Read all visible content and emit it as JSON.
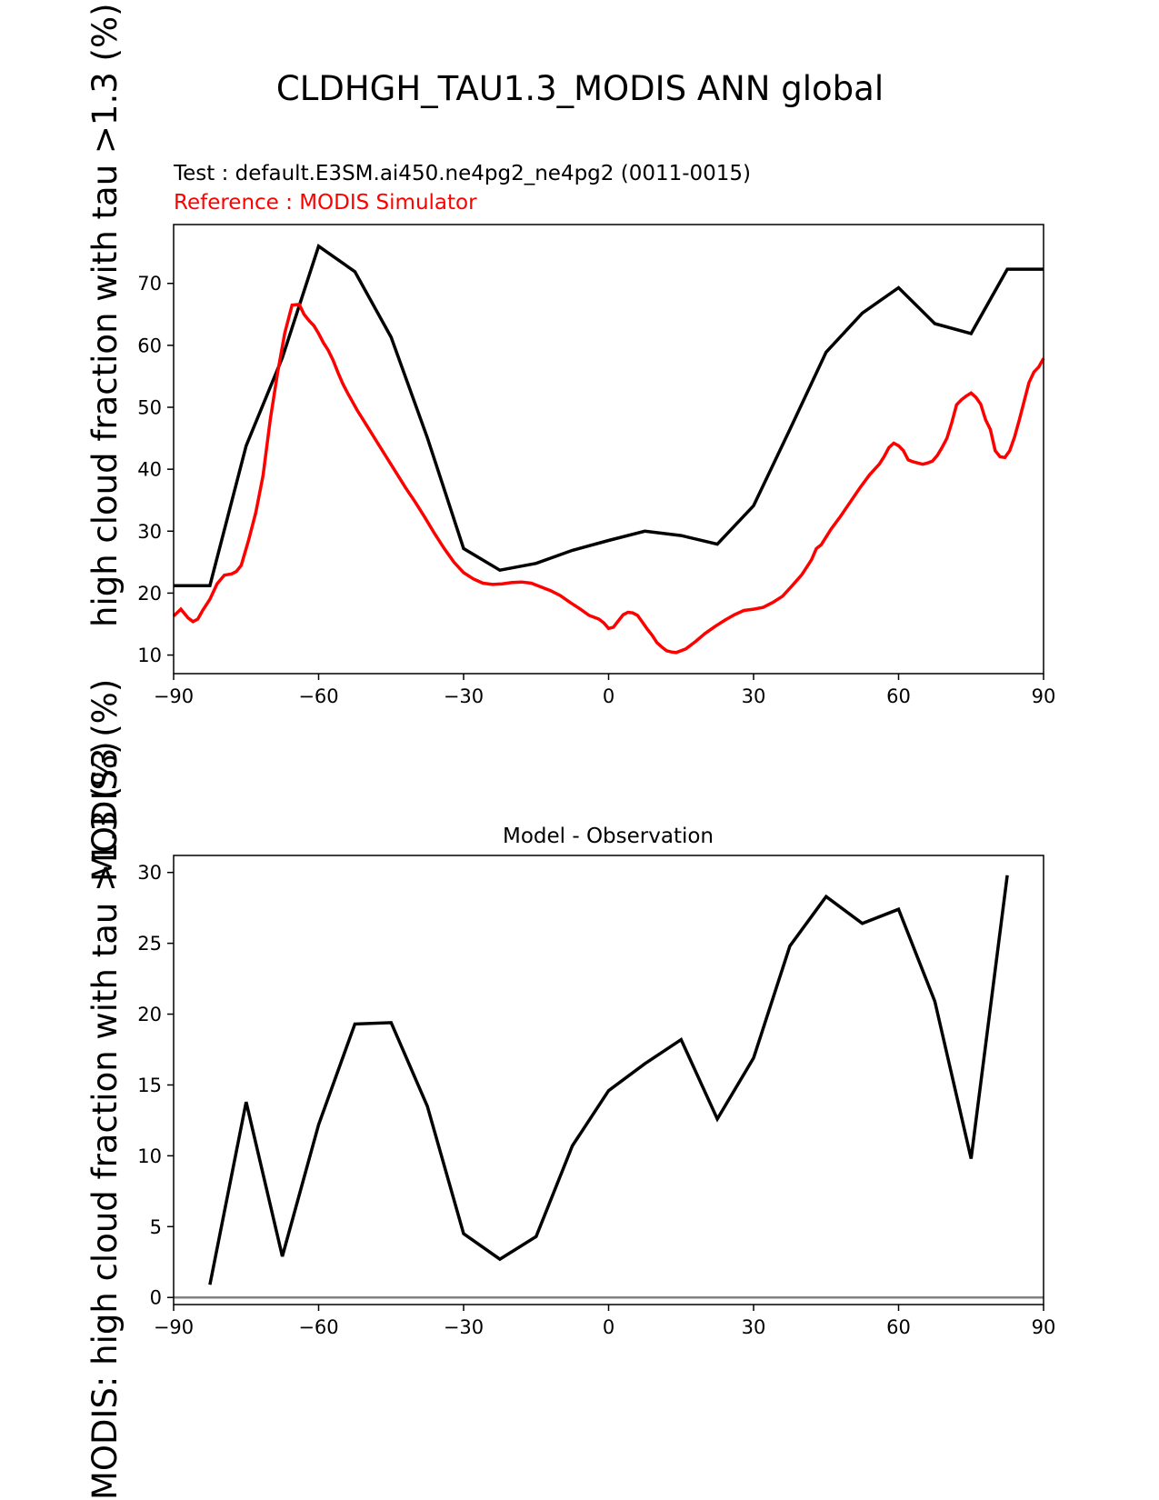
{
  "figure": {
    "suptitle": "CLDHGH_TAU1.3_MODIS ANN global",
    "ylabel_top": "high cloud fraction with tau >1.3 (%)",
    "ylabel_bottom": "MODIS: high cloud fraction with tau >1.3 (%)",
    "ylabel_middle": "MODIS3 (%)"
  },
  "colors": {
    "test": "#000000",
    "reference": "#ff0000",
    "zero_line": "#808080"
  },
  "chart_data": [
    {
      "type": "line",
      "test_label": "Test : default.E3SM.ai450.ne4pg2_ne4pg2 (0011-0015)",
      "reference_label": "Reference : MODIS Simulator",
      "xlim": [
        -90,
        90
      ],
      "ylim": [
        7,
        79.5
      ],
      "xticks": [
        -90,
        -60,
        -30,
        0,
        30,
        60,
        90
      ],
      "yticks": [
        10,
        20,
        30,
        40,
        50,
        60,
        70
      ],
      "series": [
        {
          "name": "Test : default.E3SM.ai450.ne4pg2_ne4pg2 (0011-0015)",
          "color": "#000000",
          "x": [
            -90,
            -82.5,
            -75,
            -67.5,
            -60,
            -52.5,
            -45,
            -37.5,
            -30,
            -22.5,
            -15,
            -7.5,
            0,
            7.5,
            15,
            22.5,
            30,
            37.5,
            45,
            52.5,
            60,
            67.5,
            75,
            82.5,
            90
          ],
          "y": [
            21.2,
            21.2,
            43.8,
            58.0,
            76.0,
            71.9,
            61.3,
            45.1,
            27.2,
            23.7,
            24.8,
            26.9,
            28.5,
            30.0,
            29.3,
            27.9,
            34.1,
            46.4,
            58.9,
            65.2,
            69.3,
            63.5,
            61.9,
            72.3,
            72.3
          ]
        },
        {
          "name": "Reference : MODIS Simulator",
          "color": "#ff0000",
          "x": [
            -90,
            -88.5,
            -87,
            -86,
            -85,
            -84,
            -82.5,
            -81,
            -79.5,
            -78,
            -77,
            -76,
            -74.5,
            -73,
            -71.5,
            -70,
            -68.5,
            -67,
            -65.5,
            -64,
            -63,
            -62,
            -61,
            -60,
            -59,
            -58,
            -57,
            -56,
            -55,
            -54,
            -52,
            -50,
            -48,
            -46,
            -44,
            -42,
            -40,
            -38,
            -36,
            -34,
            -32,
            -30,
            -28,
            -26,
            -24,
            -22,
            -20,
            -18,
            -16,
            -14,
            -12,
            -10,
            -8,
            -6,
            -4,
            -2,
            -1,
            0,
            1,
            2,
            3,
            4,
            5,
            6,
            7,
            8,
            9,
            10,
            11,
            12,
            13,
            14,
            16,
            18,
            20,
            22,
            24,
            26,
            28,
            30,
            32,
            34,
            36,
            38,
            40,
            42,
            43,
            44,
            46,
            48,
            50,
            52,
            54,
            56,
            57,
            58,
            59,
            60,
            61,
            62,
            63,
            64,
            65,
            66,
            67,
            68,
            69,
            70,
            71,
            72,
            73,
            74,
            75,
            76,
            77,
            78,
            79,
            80,
            81,
            82,
            83,
            84,
            85,
            86,
            87,
            88,
            89,
            90
          ],
          "y": [
            16.3,
            17.4,
            16.0,
            15.4,
            15.8,
            17.2,
            19.0,
            21.5,
            22.9,
            23.1,
            23.5,
            24.5,
            28.5,
            33.0,
            39.0,
            48.0,
            55.5,
            62.0,
            66.5,
            66.6,
            65.0,
            64.0,
            63.2,
            61.9,
            60.4,
            59.2,
            57.6,
            55.6,
            53.8,
            52.3,
            49.5,
            47.0,
            44.5,
            42.0,
            39.5,
            37.0,
            34.7,
            32.2,
            29.6,
            27.2,
            25.0,
            23.3,
            22.3,
            21.6,
            21.4,
            21.5,
            21.7,
            21.8,
            21.6,
            21.0,
            20.4,
            19.6,
            18.5,
            17.5,
            16.4,
            15.8,
            15.2,
            14.3,
            14.5,
            15.5,
            16.5,
            16.9,
            16.8,
            16.4,
            15.3,
            14.2,
            13.2,
            12.0,
            11.3,
            10.7,
            10.5,
            10.4,
            11.0,
            12.2,
            13.5,
            14.6,
            15.6,
            16.5,
            17.2,
            17.4,
            17.7,
            18.5,
            19.5,
            21.2,
            23.0,
            25.4,
            27.2,
            27.8,
            30.3,
            32.4,
            34.7,
            37.0,
            39.1,
            40.8,
            42.0,
            43.5,
            44.2,
            43.8,
            43.0,
            41.5,
            41.2,
            41.0,
            40.8,
            41.0,
            41.3,
            42.2,
            43.5,
            45.0,
            47.5,
            50.4,
            51.2,
            51.8,
            52.3,
            51.6,
            50.5,
            48.0,
            46.4,
            43.0,
            42.0,
            41.9,
            43.0,
            45.2,
            48.0,
            51.0,
            54.0,
            55.7,
            56.5,
            57.9
          ]
        }
      ]
    },
    {
      "type": "line",
      "title": "Model - Observation",
      "xlim": [
        -90,
        90
      ],
      "ylim": [
        -0.5,
        31.2
      ],
      "xticks": [
        -90,
        -60,
        -30,
        0,
        30,
        60,
        90
      ],
      "yticks": [
        0,
        5,
        10,
        15,
        20,
        25,
        30
      ],
      "zero_line": 0,
      "series": [
        {
          "color": "#000000",
          "x": [
            -82.5,
            -75,
            -67.5,
            -60,
            -52.5,
            -45,
            -37.5,
            -30,
            -22.5,
            -15,
            -7.5,
            0,
            7.5,
            15,
            22.5,
            30,
            37.5,
            45,
            52.5,
            60,
            67.5,
            75,
            82.5
          ],
          "y": [
            0.9,
            13.8,
            2.9,
            12.2,
            19.3,
            19.4,
            13.5,
            4.5,
            2.7,
            4.3,
            10.7,
            14.6,
            16.5,
            18.2,
            12.6,
            16.9,
            24.8,
            28.3,
            26.4,
            27.4,
            20.9,
            9.8,
            29.8
          ]
        }
      ]
    }
  ]
}
